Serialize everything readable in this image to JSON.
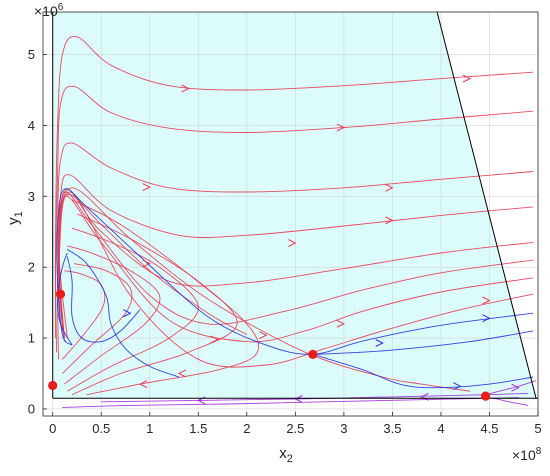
{
  "chart_data": {
    "type": "line",
    "title": "",
    "xlabel": "x",
    "xlabel_sub": "2",
    "ylabel": "y",
    "ylabel_sub": "1",
    "x_exponent": "8",
    "y_exponent": "6",
    "x_multiplier_base": "×10",
    "y_multiplier_base": "×10",
    "xlim": [
      -0.1,
      5.0
    ],
    "ylim": [
      -0.1,
      5.6
    ],
    "xticks": [
      0,
      0.5,
      1,
      1.5,
      2,
      2.5,
      3,
      3.5,
      4,
      4.5,
      5
    ],
    "xtick_labels": [
      "0",
      "0.5",
      "1",
      "1.5",
      "2",
      "2.5",
      "3",
      "3.5",
      "4",
      "4.5",
      "5"
    ],
    "yticks": [
      0,
      1,
      2,
      3,
      4,
      5
    ],
    "ytick_labels": [
      "0",
      "1",
      "2",
      "3",
      "4",
      "5"
    ],
    "grid": true,
    "legend": "none",
    "colors": {
      "region_fill": "#dcfbfb",
      "red_curve": "#e8374f",
      "blue_curve": "#1f2fdc",
      "purple_curve": "#a028d8",
      "equilibrium": "#e81c1c",
      "boundary": "#000000",
      "grid": "#d4d4d4"
    },
    "feasible_region": [
      [
        0,
        0.15
      ],
      [
        0,
        5.6
      ],
      [
        3.96,
        5.6
      ],
      [
        4.98,
        0.15
      ]
    ],
    "boundary_line": [
      [
        3.96,
        5.6
      ],
      [
        4.98,
        0.15
      ]
    ],
    "floor_line": [
      [
        0,
        0.15
      ],
      [
        5.0,
        0.15
      ]
    ],
    "equilibria": [
      {
        "x": 0.0,
        "y": 0.33
      },
      {
        "x": 0.08,
        "y": 1.62
      },
      {
        "x": 2.68,
        "y": 0.77
      },
      {
        "x": 4.46,
        "y": 0.18
      }
    ],
    "series": [
      {
        "color": "red",
        "points": [
          [
            4.95,
            4.75
          ],
          [
            4.0,
            4.66
          ],
          [
            3.0,
            4.56
          ],
          [
            2.0,
            4.5
          ],
          [
            1.2,
            4.56
          ],
          [
            0.6,
            4.85
          ],
          [
            0.25,
            5.25
          ],
          [
            0.1,
            5.0
          ],
          [
            0.05,
            4.0
          ],
          [
            0.03,
            2.5
          ],
          [
            0.03,
            1.0
          ]
        ]
      },
      {
        "color": "red",
        "points": [
          [
            4.95,
            4.2
          ],
          [
            4.0,
            4.09
          ],
          [
            3.0,
            3.97
          ],
          [
            2.0,
            3.9
          ],
          [
            1.2,
            3.96
          ],
          [
            0.6,
            4.18
          ],
          [
            0.22,
            4.55
          ],
          [
            0.08,
            4.3
          ],
          [
            0.05,
            3.3
          ],
          [
            0.03,
            2.0
          ],
          [
            0.04,
            0.8
          ]
        ]
      },
      {
        "color": "red",
        "points": [
          [
            4.95,
            3.35
          ],
          [
            4.0,
            3.24
          ],
          [
            3.0,
            3.12
          ],
          [
            2.0,
            3.06
          ],
          [
            1.2,
            3.12
          ],
          [
            0.6,
            3.4
          ],
          [
            0.2,
            3.75
          ],
          [
            0.08,
            3.5
          ],
          [
            0.05,
            2.6
          ],
          [
            0.05,
            1.5
          ],
          [
            0.06,
            0.7
          ]
        ]
      },
      {
        "color": "red",
        "points": [
          [
            4.95,
            2.85
          ],
          [
            4.0,
            2.73
          ],
          [
            3.0,
            2.58
          ],
          [
            2.0,
            2.45
          ],
          [
            1.3,
            2.45
          ],
          [
            0.6,
            2.8
          ],
          [
            0.18,
            3.3
          ],
          [
            0.08,
            3.0
          ],
          [
            0.06,
            2.0
          ],
          [
            0.08,
            1.2
          ]
        ]
      },
      {
        "color": "red",
        "points": [
          [
            4.95,
            2.35
          ],
          [
            4.0,
            2.2
          ],
          [
            3.0,
            1.98
          ],
          [
            2.0,
            1.78
          ],
          [
            1.2,
            1.8
          ],
          [
            0.5,
            2.5
          ],
          [
            0.15,
            3.1
          ],
          [
            0.07,
            2.5
          ],
          [
            0.08,
            1.5
          ],
          [
            0.12,
            0.95
          ]
        ]
      },
      {
        "color": "red",
        "points": [
          [
            4.95,
            2.1
          ],
          [
            4.0,
            1.92
          ],
          [
            3.2,
            1.68
          ],
          [
            2.4,
            1.38
          ],
          [
            1.6,
            1.2
          ],
          [
            1.0,
            1.6
          ],
          [
            0.4,
            2.6
          ],
          [
            0.12,
            3.05
          ],
          [
            0.06,
            2.2
          ],
          [
            0.1,
            1.2
          ]
        ]
      },
      {
        "color": "red",
        "points": [
          [
            4.95,
            1.85
          ],
          [
            4.0,
            1.65
          ],
          [
            3.2,
            1.38
          ],
          [
            2.6,
            1.1
          ],
          [
            2.0,
            0.95
          ],
          [
            1.2,
            1.25
          ],
          [
            0.5,
            2.35
          ],
          [
            0.12,
            3.0
          ],
          [
            0.06,
            2.0
          ],
          [
            0.12,
            1.0
          ]
        ]
      },
      {
        "color": "red",
        "points": [
          [
            4.95,
            1.62
          ],
          [
            4.2,
            1.4
          ],
          [
            3.4,
            1.1
          ],
          [
            2.8,
            0.85
          ],
          [
            2.2,
            0.62
          ],
          [
            1.5,
            0.7
          ],
          [
            0.8,
            1.6
          ],
          [
            0.2,
            3.05
          ],
          [
            0.07,
            2.2
          ],
          [
            0.12,
            1.0
          ]
        ]
      },
      {
        "color": "red",
        "points": [
          [
            4.3,
            0.25
          ],
          [
            3.8,
            0.35
          ],
          [
            3.4,
            0.45
          ],
          [
            2.6,
            0.8
          ],
          [
            1.6,
            1.55
          ],
          [
            0.8,
            2.4
          ],
          [
            0.2,
            3.12
          ],
          [
            0.07,
            2.4
          ],
          [
            0.1,
            1.1
          ]
        ]
      },
      {
        "color": "red",
        "points": [
          [
            2.0,
            1.05
          ],
          [
            1.6,
            1.35
          ],
          [
            1.0,
            1.95
          ],
          [
            0.5,
            2.6
          ],
          [
            0.15,
            3.02
          ],
          [
            0.06,
            2.3
          ],
          [
            0.15,
            1.0
          ]
        ]
      },
      {
        "color": "red",
        "points": [
          [
            0.35,
            0.2
          ],
          [
            0.9,
            0.35
          ],
          [
            1.7,
            0.55
          ],
          [
            2.1,
            0.78
          ],
          [
            2.0,
            1.2
          ],
          [
            1.4,
            1.9
          ],
          [
            0.7,
            2.6
          ],
          [
            0.2,
            2.95
          ]
        ]
      },
      {
        "color": "red",
        "points": [
          [
            0.2,
            0.2
          ],
          [
            0.7,
            0.5
          ],
          [
            1.4,
            0.8
          ],
          [
            1.9,
            1.2
          ],
          [
            1.5,
            1.8
          ],
          [
            0.8,
            2.4
          ],
          [
            0.25,
            2.75
          ]
        ]
      },
      {
        "color": "red",
        "points": [
          [
            0.15,
            0.25
          ],
          [
            0.6,
            0.6
          ],
          [
            1.2,
            1.0
          ],
          [
            1.5,
            1.45
          ],
          [
            1.1,
            2.0
          ],
          [
            0.6,
            2.35
          ],
          [
            0.2,
            2.55
          ]
        ]
      },
      {
        "color": "red",
        "points": [
          [
            0.12,
            0.35
          ],
          [
            0.5,
            0.75
          ],
          [
            0.95,
            1.2
          ],
          [
            1.1,
            1.6
          ],
          [
            0.8,
            1.95
          ],
          [
            0.4,
            2.2
          ],
          [
            0.15,
            2.3
          ]
        ]
      },
      {
        "color": "red",
        "points": [
          [
            0.1,
            0.5
          ],
          [
            0.4,
            0.9
          ],
          [
            0.75,
            1.35
          ],
          [
            0.8,
            1.7
          ],
          [
            0.55,
            1.95
          ],
          [
            0.22,
            2.05
          ]
        ]
      },
      {
        "color": "red",
        "points": [
          [
            0.1,
            0.7
          ],
          [
            0.32,
            1.05
          ],
          [
            0.52,
            1.45
          ],
          [
            0.5,
            1.75
          ],
          [
            0.3,
            1.9
          ],
          [
            0.12,
            1.95
          ]
        ]
      },
      {
        "color": "blue",
        "points": [
          [
            4.95,
            1.35
          ],
          [
            4.0,
            1.18
          ],
          [
            3.2,
            0.96
          ],
          [
            2.68,
            0.77
          ],
          [
            2.2,
            0.9
          ],
          [
            1.6,
            1.3
          ],
          [
            0.9,
            2.15
          ],
          [
            0.35,
            2.85
          ],
          [
            0.12,
            3.1
          ],
          [
            0.05,
            2.6
          ],
          [
            0.05,
            1.8
          ],
          [
            0.1,
            1.05
          ],
          [
            0.2,
            0.9
          ]
        ]
      },
      {
        "color": "blue",
        "points": [
          [
            4.95,
            1.1
          ],
          [
            4.3,
            0.95
          ],
          [
            3.5,
            0.83
          ],
          [
            2.9,
            0.78
          ],
          [
            2.68,
            0.77
          ]
        ]
      },
      {
        "color": "blue",
        "points": [
          [
            4.95,
            0.45
          ],
          [
            4.5,
            0.35
          ],
          [
            4.0,
            0.3
          ],
          [
            3.6,
            0.34
          ],
          [
            3.2,
            0.55
          ],
          [
            2.68,
            0.77
          ]
        ]
      },
      {
        "color": "blue",
        "points": [
          [
            1.3,
            0.45
          ],
          [
            1.0,
            0.6
          ],
          [
            0.75,
            0.85
          ],
          [
            0.6,
            1.2
          ],
          [
            0.55,
            1.6
          ],
          [
            0.35,
            2.05
          ],
          [
            0.15,
            2.25
          ]
        ]
      },
      {
        "color": "blue",
        "points": [
          [
            0.9,
            1.4
          ],
          [
            0.7,
            1.1
          ],
          [
            0.5,
            0.95
          ],
          [
            0.3,
            1.0
          ],
          [
            0.2,
            1.3
          ],
          [
            0.2,
            1.8
          ],
          [
            0.15,
            2.15
          ]
        ]
      },
      {
        "color": "blue",
        "points": [
          [
            0.2,
            0.9
          ],
          [
            0.08,
            1.2
          ],
          [
            0.05,
            1.6
          ],
          [
            0.1,
            2.0
          ],
          [
            0.15,
            2.2
          ]
        ]
      },
      {
        "color": "purple",
        "points": [
          [
            0.1,
            0.02
          ],
          [
            0.8,
            0.05
          ],
          [
            1.8,
            0.07
          ],
          [
            2.8,
            0.1
          ],
          [
            3.8,
            0.13
          ],
          [
            4.46,
            0.15
          ],
          [
            4.8,
            0.16
          ]
        ]
      },
      {
        "color": "purple",
        "points": [
          [
            0.5,
            0.1
          ],
          [
            1.5,
            0.12
          ],
          [
            2.5,
            0.14
          ],
          [
            3.5,
            0.17
          ],
          [
            4.46,
            0.2
          ],
          [
            4.9,
            0.22
          ]
        ]
      },
      {
        "color": "purple",
        "points": [
          [
            4.98,
            0.4
          ],
          [
            4.8,
            0.32
          ],
          [
            4.6,
            0.25
          ],
          [
            4.46,
            0.2
          ]
        ]
      },
      {
        "color": "purple",
        "points": [
          [
            4.9,
            0.05
          ],
          [
            4.7,
            0.1
          ],
          [
            4.55,
            0.15
          ]
        ]
      }
    ],
    "arrows": [
      {
        "x": 4.3,
        "y": 4.66,
        "dir": -1,
        "color": "red"
      },
      {
        "x": 1.4,
        "y": 4.52,
        "dir": -1,
        "color": "red"
      },
      {
        "x": 3.0,
        "y": 3.97,
        "dir": -1,
        "color": "red"
      },
      {
        "x": 3.5,
        "y": 3.12,
        "dir": -1,
        "color": "red"
      },
      {
        "x": 1.0,
        "y": 3.13,
        "dir": -1,
        "color": "red"
      },
      {
        "x": 3.5,
        "y": 2.66,
        "dir": -1,
        "color": "red"
      },
      {
        "x": 2.5,
        "y": 2.34,
        "dir": -1,
        "color": "red"
      },
      {
        "x": 1.0,
        "y": 2.05,
        "dir": -1,
        "color": "red"
      },
      {
        "x": 3.0,
        "y": 1.2,
        "dir": -1,
        "color": "red"
      },
      {
        "x": 2.2,
        "y": 1.04,
        "dir": -1,
        "color": "red"
      },
      {
        "x": 1.7,
        "y": 0.98,
        "dir": -1,
        "color": "red"
      },
      {
        "x": 4.5,
        "y": 1.53,
        "dir": -1,
        "color": "red"
      },
      {
        "x": 0.9,
        "y": 0.35,
        "dir": 1,
        "color": "red"
      },
      {
        "x": 1.3,
        "y": 0.5,
        "dir": 1,
        "color": "red"
      },
      {
        "x": 3.4,
        "y": 0.93,
        "dir": -1,
        "color": "blue"
      },
      {
        "x": 4.5,
        "y": 1.28,
        "dir": -1,
        "color": "blue"
      },
      {
        "x": 4.2,
        "y": 0.32,
        "dir": -1,
        "color": "blue"
      },
      {
        "x": 0.8,
        "y": 1.35,
        "dir": -1,
        "color": "blue"
      },
      {
        "x": 1.5,
        "y": 0.12,
        "dir": 1,
        "color": "purple"
      },
      {
        "x": 2.5,
        "y": 0.14,
        "dir": 1,
        "color": "purple"
      },
      {
        "x": 3.8,
        "y": 0.17,
        "dir": 1,
        "color": "purple"
      },
      {
        "x": 4.8,
        "y": 0.3,
        "dir": -1,
        "color": "purple"
      }
    ]
  }
}
